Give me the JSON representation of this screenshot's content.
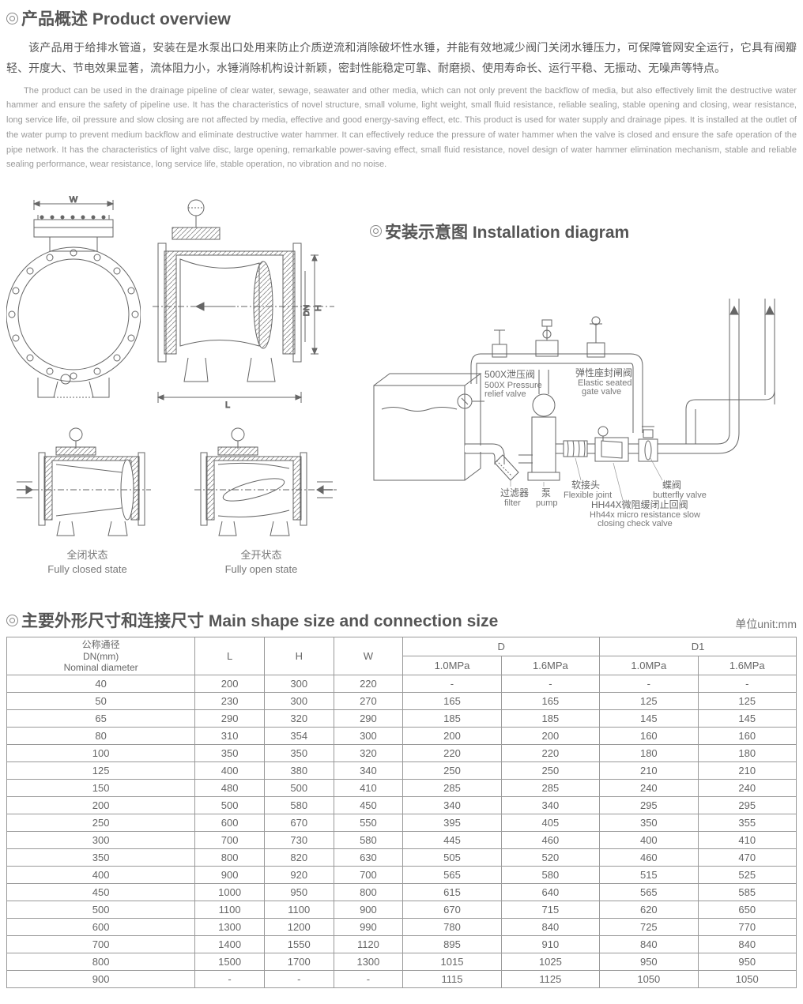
{
  "overview": {
    "title": "产品概述 Product overview",
    "para_cn": "该产品用于给排水管道，安装在是水泵出口处用来防止介质逆流和消除破坏性水锤，并能有效地减少阀门关闭水锤压力，可保障管网安全运行，它具有阀瓣轻、开度大、节电效果显著，流体阻力小，水锤消除机构设计新颖，密封性能稳定可靠、耐磨损、使用寿命长、运行平稳、无振动、无噪声等特点。",
    "para_en": "The product can be used in the drainage pipeline of clear water, sewage, seawater and other media, which can not only prevent the backflow of media, but also effectively limit the destructive water hammer and ensure the safety of pipeline use. It has the characteristics of novel structure, small volume, light weight, small fluid resistance, reliable sealing, stable opening and closing, wear resistance, long service life, oil pressure and slow closing are not affected by media, effective and good energy-saving effect, etc. This product is used for water supply and drainage pipes. It is installed at the outlet of the water pump to prevent medium backflow and eliminate destructive water hammer. It can effectively reduce the pressure of water hammer when the valve is closed and ensure the safe operation of the pipe network. It has the characteristics of light valve disc, large opening, remarkable power-saving effect, small fluid resistance, novel design of water hammer elimination mechanism, stable and reliable sealing performance, wear resistance, long service life, stable operation, no vibration and no noise."
  },
  "diagrams": {
    "dim_W": "W",
    "dim_L": "L",
    "dim_H": "H",
    "dim_DN": "DN",
    "closed_cn": "全闭状态",
    "closed_en": "Fully closed state",
    "open_cn": "全开状态",
    "open_en": "Fully open state"
  },
  "installation": {
    "title": "安装示意图 Installation diagram",
    "labels": {
      "relief_cn": "500X泄压阀",
      "relief_en1": "500X Pressure",
      "relief_en2": "relief valve",
      "gate_cn": "弹性座封闸阀",
      "gate_en1": "Elastic seated",
      "gate_en2": "gate valve",
      "filter_cn": "过滤器",
      "filter_en": "filter",
      "pump_cn": "泵",
      "pump_en": "pump",
      "flex_cn": "软接头",
      "flex_en": "Flexible joint",
      "check_cn": "HH44X微阻缓闭止回阀",
      "check_en1": "Hh44x micro resistance slow",
      "check_en2": "closing check valve",
      "bfly_cn": "蝶阀",
      "bfly_en": "butterfly valve"
    }
  },
  "table": {
    "title": "主要外形尺寸和连接尺寸 Main shape size and connection size",
    "unit": "单位unit:mm",
    "headers": {
      "dn_cn": "公称通径",
      "dn_mm": "DN(mm)",
      "dn_en": "Nominal diameter",
      "L": "L",
      "H": "H",
      "W": "W",
      "D": "D",
      "D1": "D1",
      "p10": "1.0MPa",
      "p16": "1.6MPa"
    },
    "rows": [
      [
        "40",
        "200",
        "300",
        "220",
        "-",
        "-",
        "-",
        "-"
      ],
      [
        "50",
        "230",
        "300",
        "270",
        "165",
        "165",
        "125",
        "125"
      ],
      [
        "65",
        "290",
        "320",
        "290",
        "185",
        "185",
        "145",
        "145"
      ],
      [
        "80",
        "310",
        "354",
        "300",
        "200",
        "200",
        "160",
        "160"
      ],
      [
        "100",
        "350",
        "350",
        "320",
        "220",
        "220",
        "180",
        "180"
      ],
      [
        "125",
        "400",
        "380",
        "340",
        "250",
        "250",
        "210",
        "210"
      ],
      [
        "150",
        "480",
        "500",
        "410",
        "285",
        "285",
        "240",
        "240"
      ],
      [
        "200",
        "500",
        "580",
        "450",
        "340",
        "340",
        "295",
        "295"
      ],
      [
        "250",
        "600",
        "670",
        "550",
        "395",
        "405",
        "350",
        "355"
      ],
      [
        "300",
        "700",
        "730",
        "580",
        "445",
        "460",
        "400",
        "410"
      ],
      [
        "350",
        "800",
        "820",
        "630",
        "505",
        "520",
        "460",
        "470"
      ],
      [
        "400",
        "900",
        "920",
        "700",
        "565",
        "580",
        "515",
        "525"
      ],
      [
        "450",
        "1000",
        "950",
        "800",
        "615",
        "640",
        "565",
        "585"
      ],
      [
        "500",
        "1100",
        "1100",
        "900",
        "670",
        "715",
        "620",
        "650"
      ],
      [
        "600",
        "1300",
        "1200",
        "990",
        "780",
        "840",
        "725",
        "770"
      ],
      [
        "700",
        "1400",
        "1550",
        "1120",
        "895",
        "910",
        "840",
        "840"
      ],
      [
        "800",
        "1500",
        "1700",
        "1300",
        "1015",
        "1025",
        "950",
        "950"
      ],
      [
        "900",
        "-",
        "-",
        "-",
        "1115",
        "1125",
        "1050",
        "1050"
      ]
    ]
  },
  "style": {
    "stroke": "#666",
    "stroke_light": "#999",
    "hatch": "#888"
  }
}
